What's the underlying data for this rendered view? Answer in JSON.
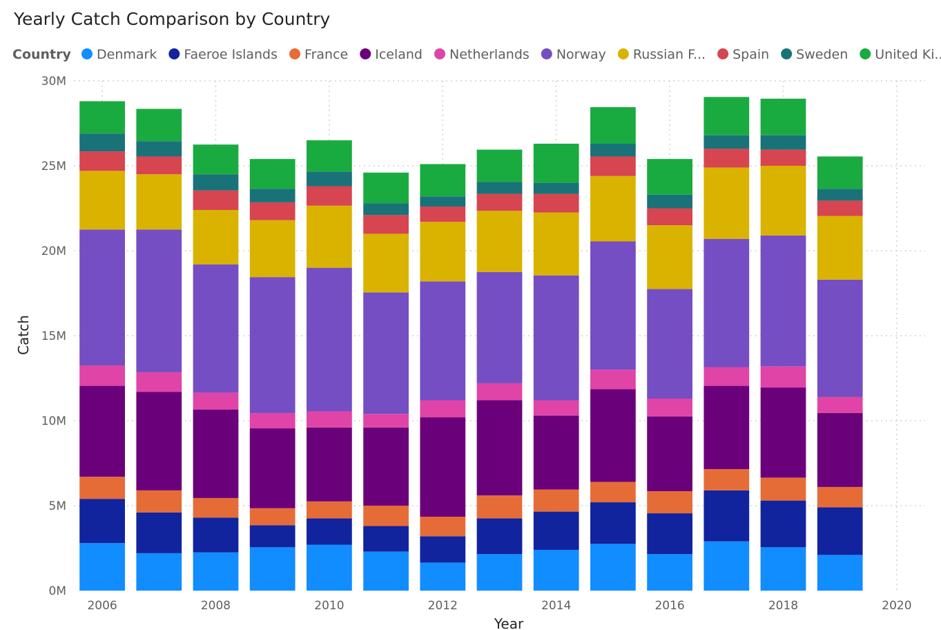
{
  "chart_data": {
    "type": "bar",
    "stacked": true,
    "title": "Yearly Catch Comparison by Country",
    "legend_title": "Country",
    "legend_position": "top",
    "xlabel": "Year",
    "ylabel": "Catch",
    "xlim": [
      2005.5,
      2020.5
    ],
    "ylim": [
      0,
      30000000
    ],
    "x_ticks": [
      2006,
      2008,
      2010,
      2012,
      2014,
      2016,
      2018,
      2020
    ],
    "y_ticks": [
      0,
      5000000,
      10000000,
      15000000,
      20000000,
      25000000,
      30000000
    ],
    "y_tick_labels": [
      "0M",
      "5M",
      "10M",
      "15M",
      "20M",
      "25M",
      "30M"
    ],
    "grid": true,
    "x": [
      2006,
      2007,
      2008,
      2009,
      2010,
      2011,
      2012,
      2013,
      2014,
      2015,
      2016,
      2017,
      2018,
      2019
    ],
    "series": [
      {
        "name": "Denmark",
        "legend_label": "Denmark",
        "color": "#118dff",
        "values": [
          2800000,
          2200000,
          2250000,
          2550000,
          2700000,
          2300000,
          1650000,
          2150000,
          2400000,
          2750000,
          2150000,
          2900000,
          2550000,
          2100000
        ]
      },
      {
        "name": "Faeroe Islands",
        "legend_label": "Faeroe Islands",
        "color": "#12239e",
        "values": [
          2600000,
          2400000,
          2050000,
          1300000,
          1550000,
          1500000,
          1550000,
          2100000,
          2250000,
          2450000,
          2400000,
          3000000,
          2750000,
          2800000
        ]
      },
      {
        "name": "France",
        "legend_label": "France",
        "color": "#e66c37",
        "values": [
          1300000,
          1300000,
          1150000,
          1000000,
          1000000,
          1200000,
          1150000,
          1350000,
          1300000,
          1200000,
          1300000,
          1250000,
          1350000,
          1200000
        ]
      },
      {
        "name": "Iceland",
        "legend_label": "Iceland",
        "color": "#6b007b",
        "values": [
          5350000,
          5800000,
          5200000,
          4700000,
          4350000,
          4600000,
          5850000,
          5600000,
          4350000,
          5450000,
          4400000,
          4900000,
          5300000,
          4350000
        ]
      },
      {
        "name": "Netherlands",
        "legend_label": "Netherlands",
        "color": "#e044a7",
        "values": [
          1200000,
          1150000,
          1000000,
          900000,
          950000,
          800000,
          1000000,
          1000000,
          900000,
          1150000,
          1050000,
          1100000,
          1250000,
          950000
        ]
      },
      {
        "name": "Norway",
        "legend_label": "Norway",
        "color": "#744ec2",
        "values": [
          8000000,
          8400000,
          7550000,
          8000000,
          8450000,
          7150000,
          7000000,
          6550000,
          7350000,
          7550000,
          6450000,
          7550000,
          7700000,
          6900000
        ]
      },
      {
        "name": "Russian Federation",
        "legend_label": "Russian F...",
        "color": "#d9b300",
        "values": [
          3450000,
          3250000,
          3200000,
          3350000,
          3650000,
          3450000,
          3500000,
          3600000,
          3700000,
          3850000,
          3750000,
          4200000,
          4100000,
          3750000
        ]
      },
      {
        "name": "Spain",
        "legend_label": "Spain",
        "color": "#d64550",
        "values": [
          1150000,
          1050000,
          1150000,
          1050000,
          1150000,
          1100000,
          900000,
          1000000,
          1100000,
          1150000,
          1000000,
          1100000,
          950000,
          900000
        ]
      },
      {
        "name": "Sweden",
        "legend_label": "Sweden",
        "color": "#197278",
        "values": [
          1050000,
          900000,
          950000,
          800000,
          850000,
          700000,
          600000,
          700000,
          650000,
          750000,
          800000,
          800000,
          850000,
          700000
        ]
      },
      {
        "name": "United Kingdom",
        "legend_label": "United Ki...",
        "color": "#1aab40",
        "values": [
          1900000,
          1900000,
          1750000,
          1750000,
          1850000,
          1800000,
          1900000,
          1900000,
          2300000,
          2150000,
          2100000,
          2250000,
          2150000,
          1900000
        ]
      }
    ]
  }
}
